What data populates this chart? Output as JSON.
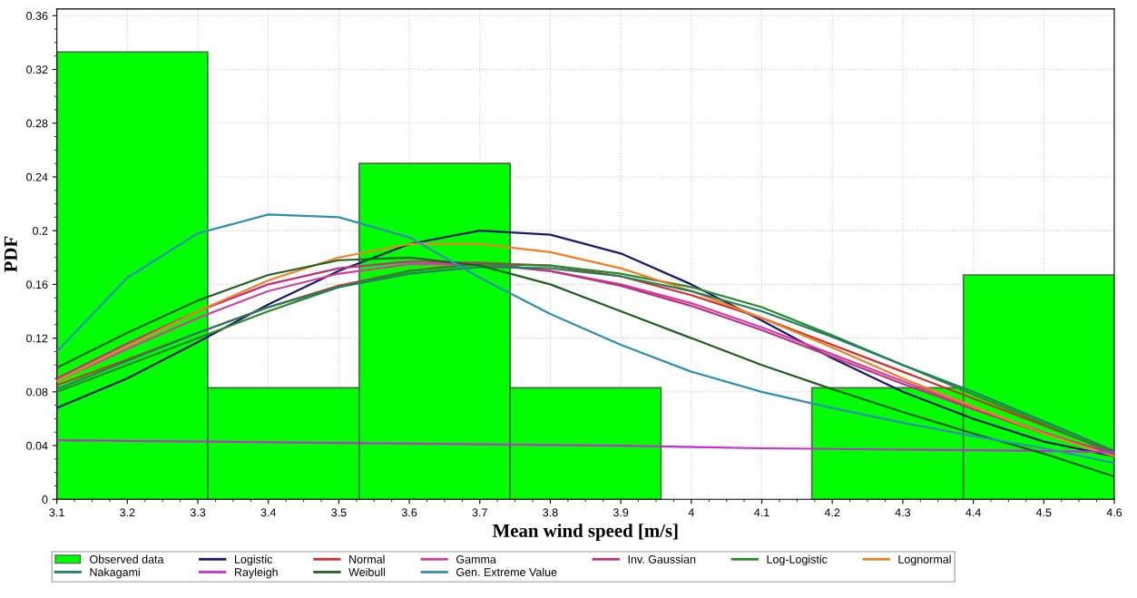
{
  "chart_data": {
    "type": "histogram",
    "xlabel": "Mean wind speed [m/s]",
    "ylabel": "PDF",
    "xlim": [
      3.1,
      4.6
    ],
    "xticks": [
      3.1,
      3.2,
      3.3,
      3.4,
      3.5,
      3.6,
      3.7,
      3.8,
      3.9,
      4,
      4.1,
      4.2,
      4.3,
      4.4,
      4.5,
      4.6
    ],
    "ylim": [
      0,
      0.365
    ],
    "yticks": [
      0,
      0.04,
      0.08,
      0.12,
      0.16,
      0.2,
      0.24,
      0.28,
      0.32,
      0.36
    ],
    "grid": true,
    "legend": "bottom",
    "series": [
      {
        "name": "Observed data",
        "color": "#00ff00",
        "bins": [
          3.1,
          3.314,
          3.529,
          3.743,
          3.957,
          4.171,
          4.386,
          4.6
        ],
        "values": [
          0.333,
          0.083,
          0.25,
          0.083,
          0,
          0.083,
          0.167
        ]
      },
      {
        "name": "Logistic",
        "type": "line",
        "color": "#1a1a6e",
        "x": [
          3.1,
          3.2,
          3.3,
          3.4,
          3.5,
          3.6,
          3.7,
          3.8,
          3.9,
          4.0,
          4.1,
          4.2,
          4.3,
          4.4,
          4.5,
          4.6
        ],
        "values": [
          0.068,
          0.09,
          0.117,
          0.145,
          0.17,
          0.19,
          0.2,
          0.197,
          0.183,
          0.16,
          0.133,
          0.105,
          0.08,
          0.06,
          0.043,
          0.032
        ]
      },
      {
        "name": "Normal",
        "type": "line",
        "color": "#d03030",
        "x": [
          3.1,
          3.2,
          3.3,
          3.4,
          3.5,
          3.6,
          3.7,
          3.8,
          3.9,
          4.0,
          4.1,
          4.2,
          4.3,
          4.4,
          4.5,
          4.6
        ],
        "values": [
          0.085,
          0.104,
          0.124,
          0.143,
          0.159,
          0.17,
          0.176,
          0.174,
          0.166,
          0.152,
          0.135,
          0.115,
          0.095,
          0.075,
          0.055,
          0.035
        ]
      },
      {
        "name": "Gamma",
        "type": "line",
        "color": "#d040a0",
        "x": [
          3.1,
          3.2,
          3.3,
          3.4,
          3.5,
          3.6,
          3.7,
          3.8,
          3.9,
          4.0,
          4.1,
          4.2,
          4.3,
          4.4,
          4.5,
          4.6
        ],
        "values": [
          0.088,
          0.112,
          0.135,
          0.155,
          0.168,
          0.175,
          0.175,
          0.17,
          0.16,
          0.146,
          0.128,
          0.108,
          0.088,
          0.068,
          0.05,
          0.033
        ]
      },
      {
        "name": "Inv. Gaussian",
        "type": "line",
        "color": "#c03080",
        "x": [
          3.1,
          3.2,
          3.3,
          3.4,
          3.5,
          3.6,
          3.7,
          3.8,
          3.9,
          4.0,
          4.1,
          4.2,
          4.3,
          4.4,
          4.5,
          4.6
        ],
        "values": [
          0.09,
          0.116,
          0.14,
          0.16,
          0.172,
          0.177,
          0.176,
          0.17,
          0.159,
          0.144,
          0.126,
          0.106,
          0.086,
          0.067,
          0.049,
          0.034
        ]
      },
      {
        "name": "Log-Logistic",
        "type": "line",
        "color": "#2a8a2a",
        "x": [
          3.1,
          3.2,
          3.3,
          3.4,
          3.5,
          3.6,
          3.7,
          3.8,
          3.9,
          4.0,
          4.1,
          4.2,
          4.3,
          4.4,
          4.5,
          4.6
        ],
        "values": [
          0.08,
          0.1,
          0.12,
          0.14,
          0.158,
          0.17,
          0.175,
          0.174,
          0.168,
          0.158,
          0.143,
          0.122,
          0.1,
          0.078,
          0.056,
          0.034
        ]
      },
      {
        "name": "Lognormal",
        "type": "line",
        "color": "#f08020",
        "x": [
          3.1,
          3.2,
          3.3,
          3.4,
          3.5,
          3.6,
          3.7,
          3.8,
          3.9,
          4.0,
          4.1,
          4.2,
          4.3,
          4.4,
          4.5,
          4.6
        ],
        "values": [
          0.088,
          0.114,
          0.14,
          0.163,
          0.18,
          0.19,
          0.19,
          0.184,
          0.172,
          0.155,
          0.135,
          0.113,
          0.09,
          0.069,
          0.049,
          0.032
        ]
      },
      {
        "name": "Nakagami",
        "type": "line",
        "color": "#208060",
        "x": [
          3.1,
          3.2,
          3.3,
          3.4,
          3.5,
          3.6,
          3.7,
          3.8,
          3.9,
          4.0,
          4.1,
          4.2,
          4.3,
          4.4,
          4.5,
          4.6
        ],
        "values": [
          0.082,
          0.103,
          0.124,
          0.143,
          0.158,
          0.168,
          0.173,
          0.172,
          0.166,
          0.155,
          0.14,
          0.121,
          0.1,
          0.08,
          0.058,
          0.036
        ]
      },
      {
        "name": "Rayleigh",
        "type": "line",
        "color": "#c030d0",
        "x": [
          3.1,
          3.3,
          3.5,
          3.7,
          3.9,
          4.1,
          4.3,
          4.5,
          4.6
        ],
        "values": [
          0.044,
          0.043,
          0.042,
          0.041,
          0.04,
          0.038,
          0.037,
          0.036,
          0.035
        ]
      },
      {
        "name": "Weibull",
        "type": "line",
        "color": "#206020",
        "x": [
          3.1,
          3.2,
          3.3,
          3.4,
          3.5,
          3.6,
          3.7,
          3.8,
          3.9,
          4.0,
          4.1,
          4.2,
          4.3,
          4.4,
          4.5,
          4.6
        ],
        "values": [
          0.098,
          0.124,
          0.148,
          0.167,
          0.178,
          0.18,
          0.174,
          0.16,
          0.14,
          0.12,
          0.1,
          0.082,
          0.065,
          0.049,
          0.034,
          0.017
        ]
      },
      {
        "name": "Gen. Extreme Value",
        "type": "line",
        "color": "#3090b0",
        "x": [
          3.1,
          3.2,
          3.3,
          3.4,
          3.5,
          3.6,
          3.7,
          3.8,
          3.9,
          4.0,
          4.1,
          4.2,
          4.3,
          4.4,
          4.5,
          4.6
        ],
        "values": [
          0.11,
          0.165,
          0.198,
          0.212,
          0.21,
          0.195,
          0.165,
          0.138,
          0.115,
          0.095,
          0.08,
          0.068,
          0.057,
          0.047,
          0.038,
          0.027
        ]
      }
    ]
  }
}
